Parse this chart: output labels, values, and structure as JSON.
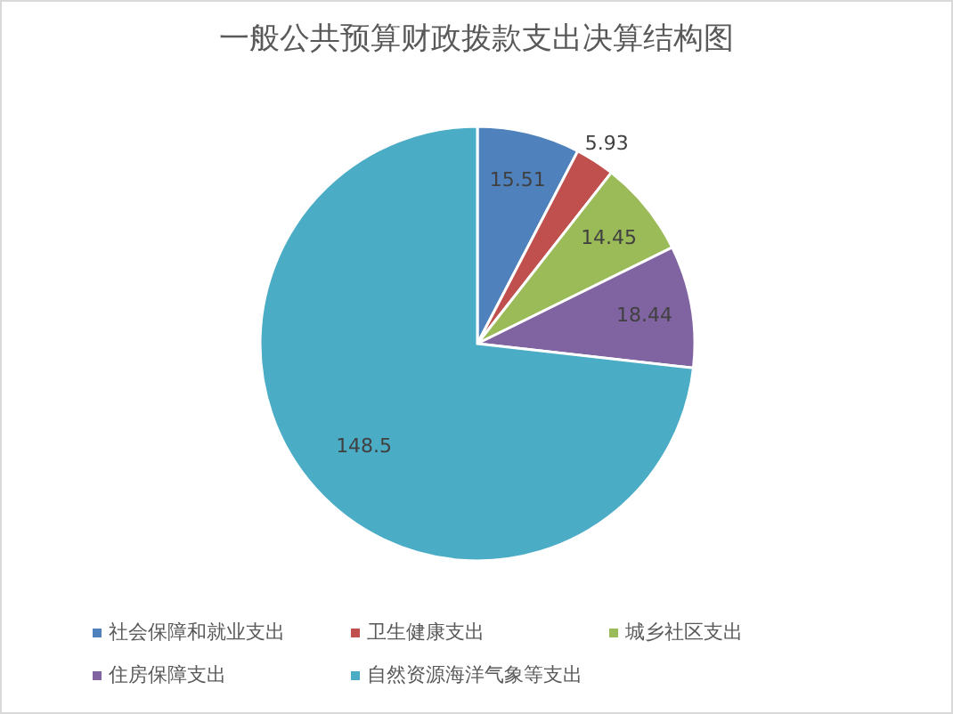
{
  "chart_data": {
    "type": "pie",
    "title": "一般公共预算财政拨款支出决算结构图",
    "categories": [
      "社会保障和就业支出",
      "卫生健康支出",
      "城乡社区支出",
      "住房保障支出",
      "自然资源海洋气象等支出"
    ],
    "values": [
      15.51,
      5.93,
      14.45,
      18.44,
      148.5
    ],
    "colors": [
      "#4f81bd",
      "#c0504d",
      "#9bbb59",
      "#8064a2",
      "#4bacc6"
    ],
    "data_labels": true,
    "legend": "bottom"
  }
}
